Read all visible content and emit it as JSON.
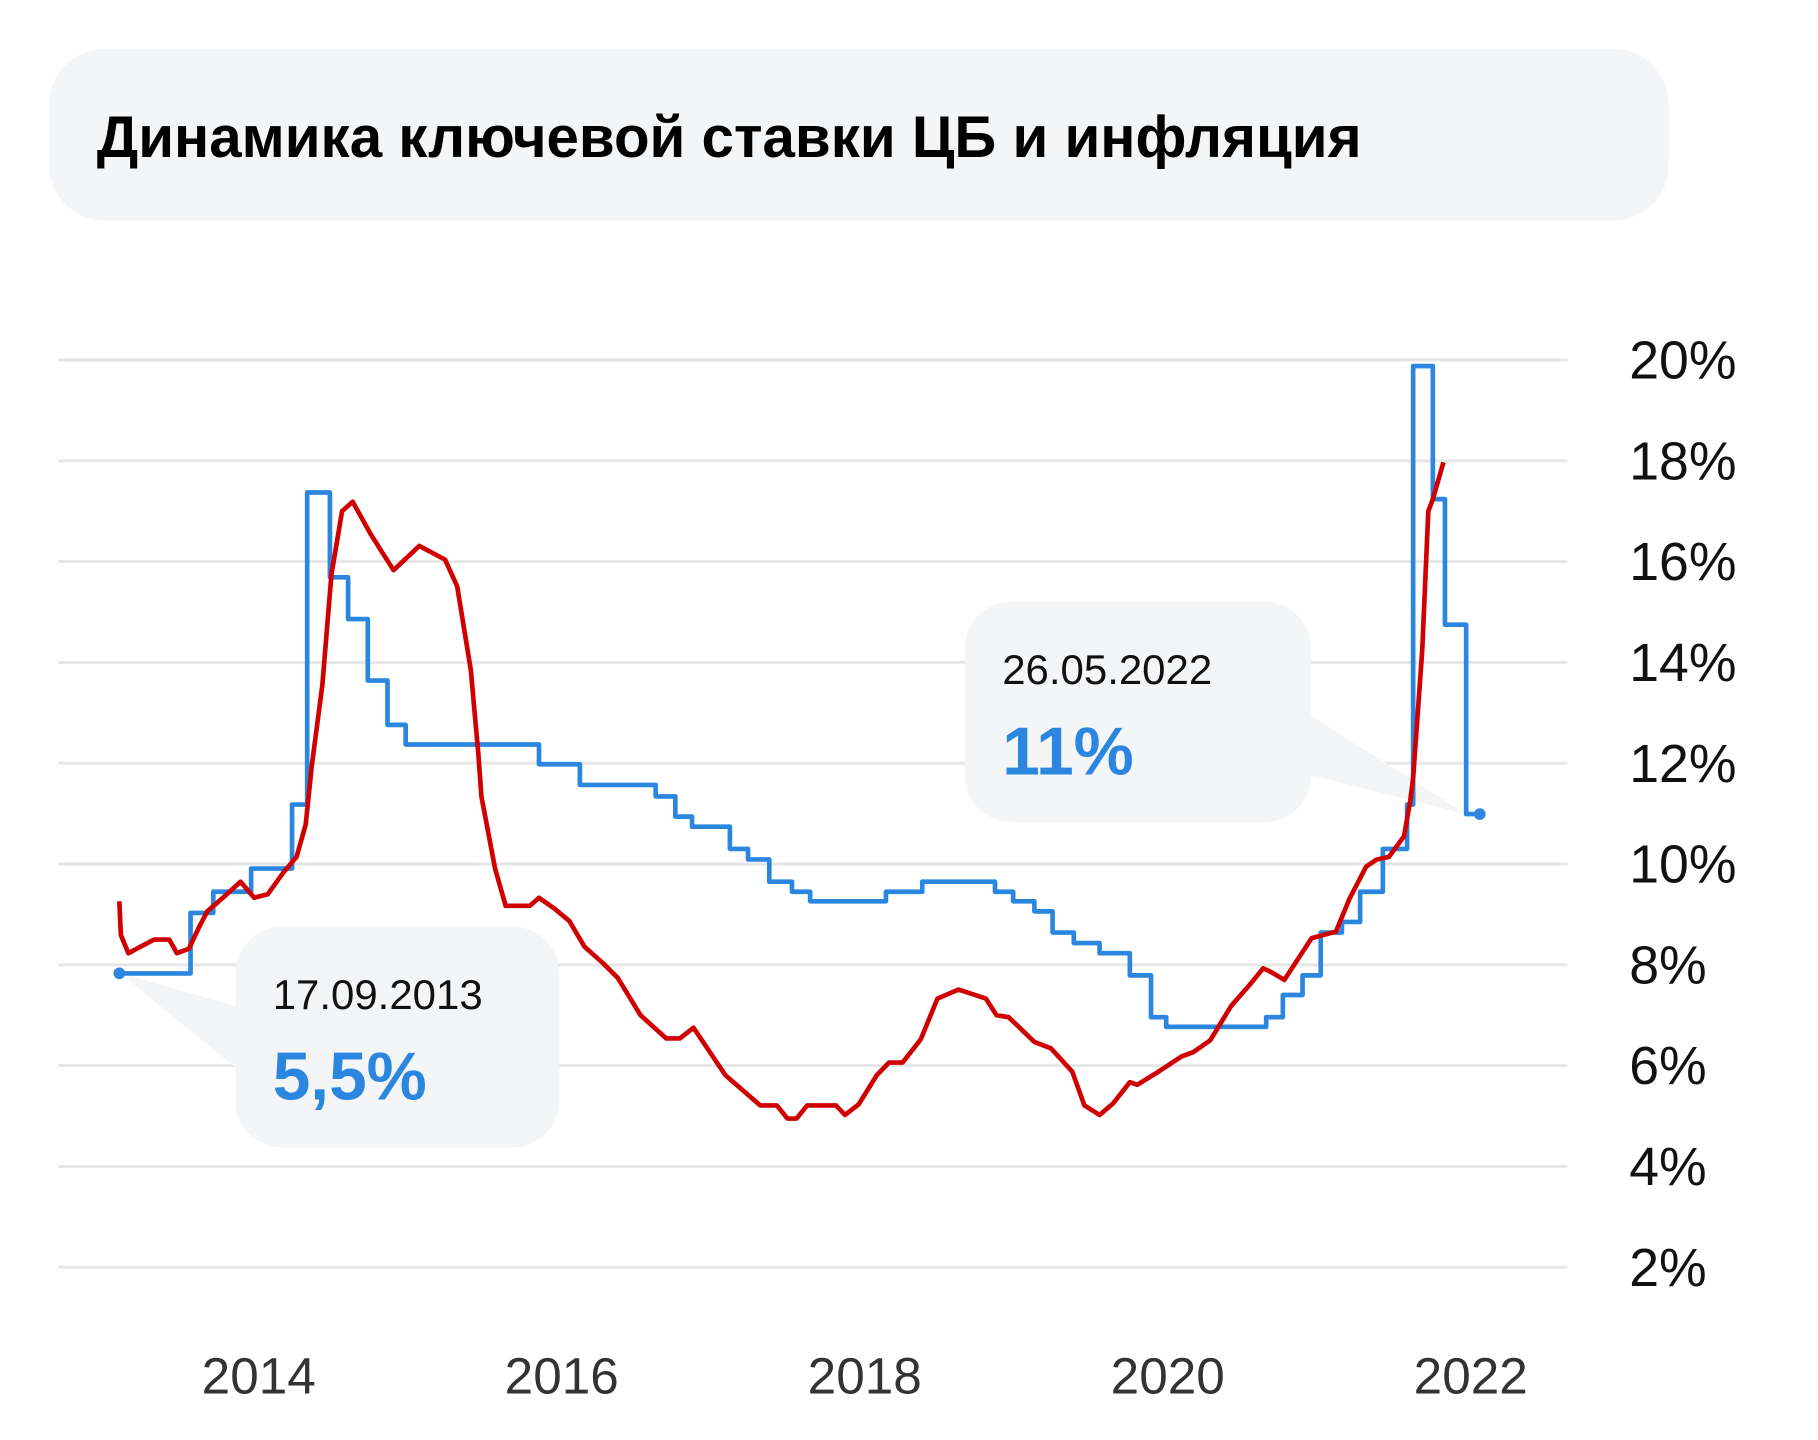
{
  "title": "Динамика ключевой ставки ЦБ и инфляция",
  "callouts": [
    {
      "date": "17.09.2013",
      "value": "5,5%"
    },
    {
      "date": "26.05.2022",
      "value": "11%"
    }
  ],
  "colors": {
    "key_rate": "#2b86e0",
    "inflation": "#d10000",
    "grid": "#e6e6e6",
    "callout_bg": "#f4f5f7",
    "title_bg": "#f4f5f7"
  },
  "chart_data": {
    "type": "line",
    "title": "Динамика ключевой ставки ЦБ и инфляция",
    "xlabel": "",
    "ylabel": "",
    "x_ticks": [
      2014,
      2016,
      2018,
      2020,
      2022
    ],
    "x_tick_labels": [
      "2014",
      "2016",
      "2018",
      "2020",
      "2022"
    ],
    "y_ticks": [
      20,
      18,
      16,
      14,
      12,
      10,
      8,
      6,
      4,
      2
    ],
    "y_tick_labels": [
      "20%",
      "18%",
      "16%",
      "14%",
      "12%",
      "10%",
      "8%",
      "6%",
      "4%",
      "2%"
    ],
    "ylim": [
      2,
      20
    ],
    "grid": true,
    "y_axis_side": "right",
    "series": [
      {
        "style": "step",
        "color": "#2b86e0",
        "points": [
          [
            2013.08,
            7.83
          ],
          [
            2013.55,
            9.03
          ],
          [
            2013.7,
            9.45
          ],
          [
            2013.95,
            9.91
          ],
          [
            2014.22,
            11.18
          ],
          [
            2014.32,
            17.37
          ],
          [
            2014.47,
            15.69
          ],
          [
            2014.59,
            14.86
          ],
          [
            2014.72,
            13.64
          ],
          [
            2014.85,
            12.76
          ],
          [
            2014.97,
            12.37
          ],
          [
            2015.85,
            11.98
          ],
          [
            2016.12,
            11.57
          ],
          [
            2016.62,
            11.34
          ],
          [
            2016.75,
            10.94
          ],
          [
            2016.86,
            10.74
          ],
          [
            2017.11,
            10.3
          ],
          [
            2017.23,
            10.09
          ],
          [
            2017.37,
            9.65
          ],
          [
            2017.52,
            9.45
          ],
          [
            2017.64,
            9.26
          ],
          [
            2018.14,
            9.45
          ],
          [
            2018.38,
            9.65
          ],
          [
            2018.86,
            9.45
          ],
          [
            2018.98,
            9.26
          ],
          [
            2019.12,
            9.06
          ],
          [
            2019.24,
            8.64
          ],
          [
            2019.38,
            8.43
          ],
          [
            2019.55,
            8.23
          ],
          [
            2019.75,
            7.79
          ],
          [
            2019.89,
            6.96
          ],
          [
            2019.99,
            6.77
          ],
          [
            2020.65,
            6.96
          ],
          [
            2020.76,
            7.4
          ],
          [
            2020.89,
            7.79
          ],
          [
            2021.01,
            8.64
          ],
          [
            2021.15,
            8.85
          ],
          [
            2021.27,
            9.45
          ],
          [
            2021.42,
            10.3
          ],
          [
            2021.58,
            11.18
          ],
          [
            2021.62,
            19.88
          ],
          [
            2021.75,
            17.24
          ],
          [
            2021.83,
            14.75
          ],
          [
            2021.97,
            10.99
          ],
          [
            2022.06,
            10.99
          ]
        ]
      },
      {
        "style": "line",
        "color": "#d10000",
        "points": [
          [
            2013.08,
            9.26
          ],
          [
            2013.09,
            8.59
          ],
          [
            2013.14,
            8.23
          ],
          [
            2013.22,
            8.36
          ],
          [
            2013.31,
            8.5
          ],
          [
            2013.41,
            8.5
          ],
          [
            2013.46,
            8.23
          ],
          [
            2013.54,
            8.32
          ],
          [
            2013.6,
            8.71
          ],
          [
            2013.66,
            9.06
          ],
          [
            2013.79,
            9.4
          ],
          [
            2013.88,
            9.65
          ],
          [
            2013.97,
            9.33
          ],
          [
            2014.06,
            9.4
          ],
          [
            2014.16,
            9.82
          ],
          [
            2014.25,
            10.14
          ],
          [
            2014.31,
            10.78
          ],
          [
            2014.35,
            11.94
          ],
          [
            2014.42,
            13.55
          ],
          [
            2014.48,
            15.74
          ],
          [
            2014.55,
            17.0
          ],
          [
            2014.62,
            17.19
          ],
          [
            2014.74,
            16.54
          ],
          [
            2014.89,
            15.83
          ],
          [
            2015.06,
            16.31
          ],
          [
            2015.23,
            16.04
          ],
          [
            2015.31,
            15.51
          ],
          [
            2015.4,
            13.85
          ],
          [
            2015.45,
            12.17
          ],
          [
            2015.47,
            11.34
          ],
          [
            2015.56,
            9.91
          ],
          [
            2015.63,
            9.17
          ],
          [
            2015.79,
            9.17
          ],
          [
            2015.85,
            9.33
          ],
          [
            2015.95,
            9.12
          ],
          [
            2016.05,
            8.87
          ],
          [
            2016.15,
            8.36
          ],
          [
            2016.27,
            8.04
          ],
          [
            2016.37,
            7.74
          ],
          [
            2016.52,
            7.0
          ],
          [
            2016.69,
            6.54
          ],
          [
            2016.78,
            6.54
          ],
          [
            2016.87,
            6.75
          ],
          [
            2017.08,
            5.81
          ],
          [
            2017.31,
            5.21
          ],
          [
            2017.42,
            5.21
          ],
          [
            2017.49,
            4.95
          ],
          [
            2017.55,
            4.95
          ],
          [
            2017.62,
            5.21
          ],
          [
            2017.81,
            5.21
          ],
          [
            2017.87,
            5.02
          ],
          [
            2017.96,
            5.23
          ],
          [
            2018.08,
            5.81
          ],
          [
            2018.16,
            6.06
          ],
          [
            2018.25,
            6.06
          ],
          [
            2018.37,
            6.52
          ],
          [
            2018.48,
            7.33
          ],
          [
            2018.62,
            7.51
          ],
          [
            2018.8,
            7.33
          ],
          [
            2018.87,
            7.0
          ],
          [
            2018.95,
            6.96
          ],
          [
            2019.12,
            6.47
          ],
          [
            2019.23,
            6.34
          ],
          [
            2019.37,
            5.88
          ],
          [
            2019.45,
            5.21
          ],
          [
            2019.55,
            5.02
          ],
          [
            2019.64,
            5.25
          ],
          [
            2019.75,
            5.67
          ],
          [
            2019.8,
            5.62
          ],
          [
            2019.95,
            5.9
          ],
          [
            2020.09,
            6.18
          ],
          [
            2020.17,
            6.27
          ],
          [
            2020.28,
            6.5
          ],
          [
            2020.42,
            7.19
          ],
          [
            2020.54,
            7.6
          ],
          [
            2020.63,
            7.93
          ],
          [
            2020.68,
            7.86
          ],
          [
            2020.77,
            7.7
          ],
          [
            2020.95,
            8.53
          ],
          [
            2021.11,
            8.66
          ],
          [
            2021.2,
            9.31
          ],
          [
            2021.31,
            9.95
          ],
          [
            2021.38,
            10.09
          ],
          [
            2021.46,
            10.14
          ],
          [
            2021.56,
            10.55
          ],
          [
            2021.6,
            11.24
          ],
          [
            2021.62,
            11.71
          ],
          [
            2021.68,
            14.24
          ],
          [
            2021.72,
            17.0
          ],
          [
            2021.75,
            17.24
          ],
          [
            2021.82,
            17.97
          ]
        ]
      }
    ]
  }
}
